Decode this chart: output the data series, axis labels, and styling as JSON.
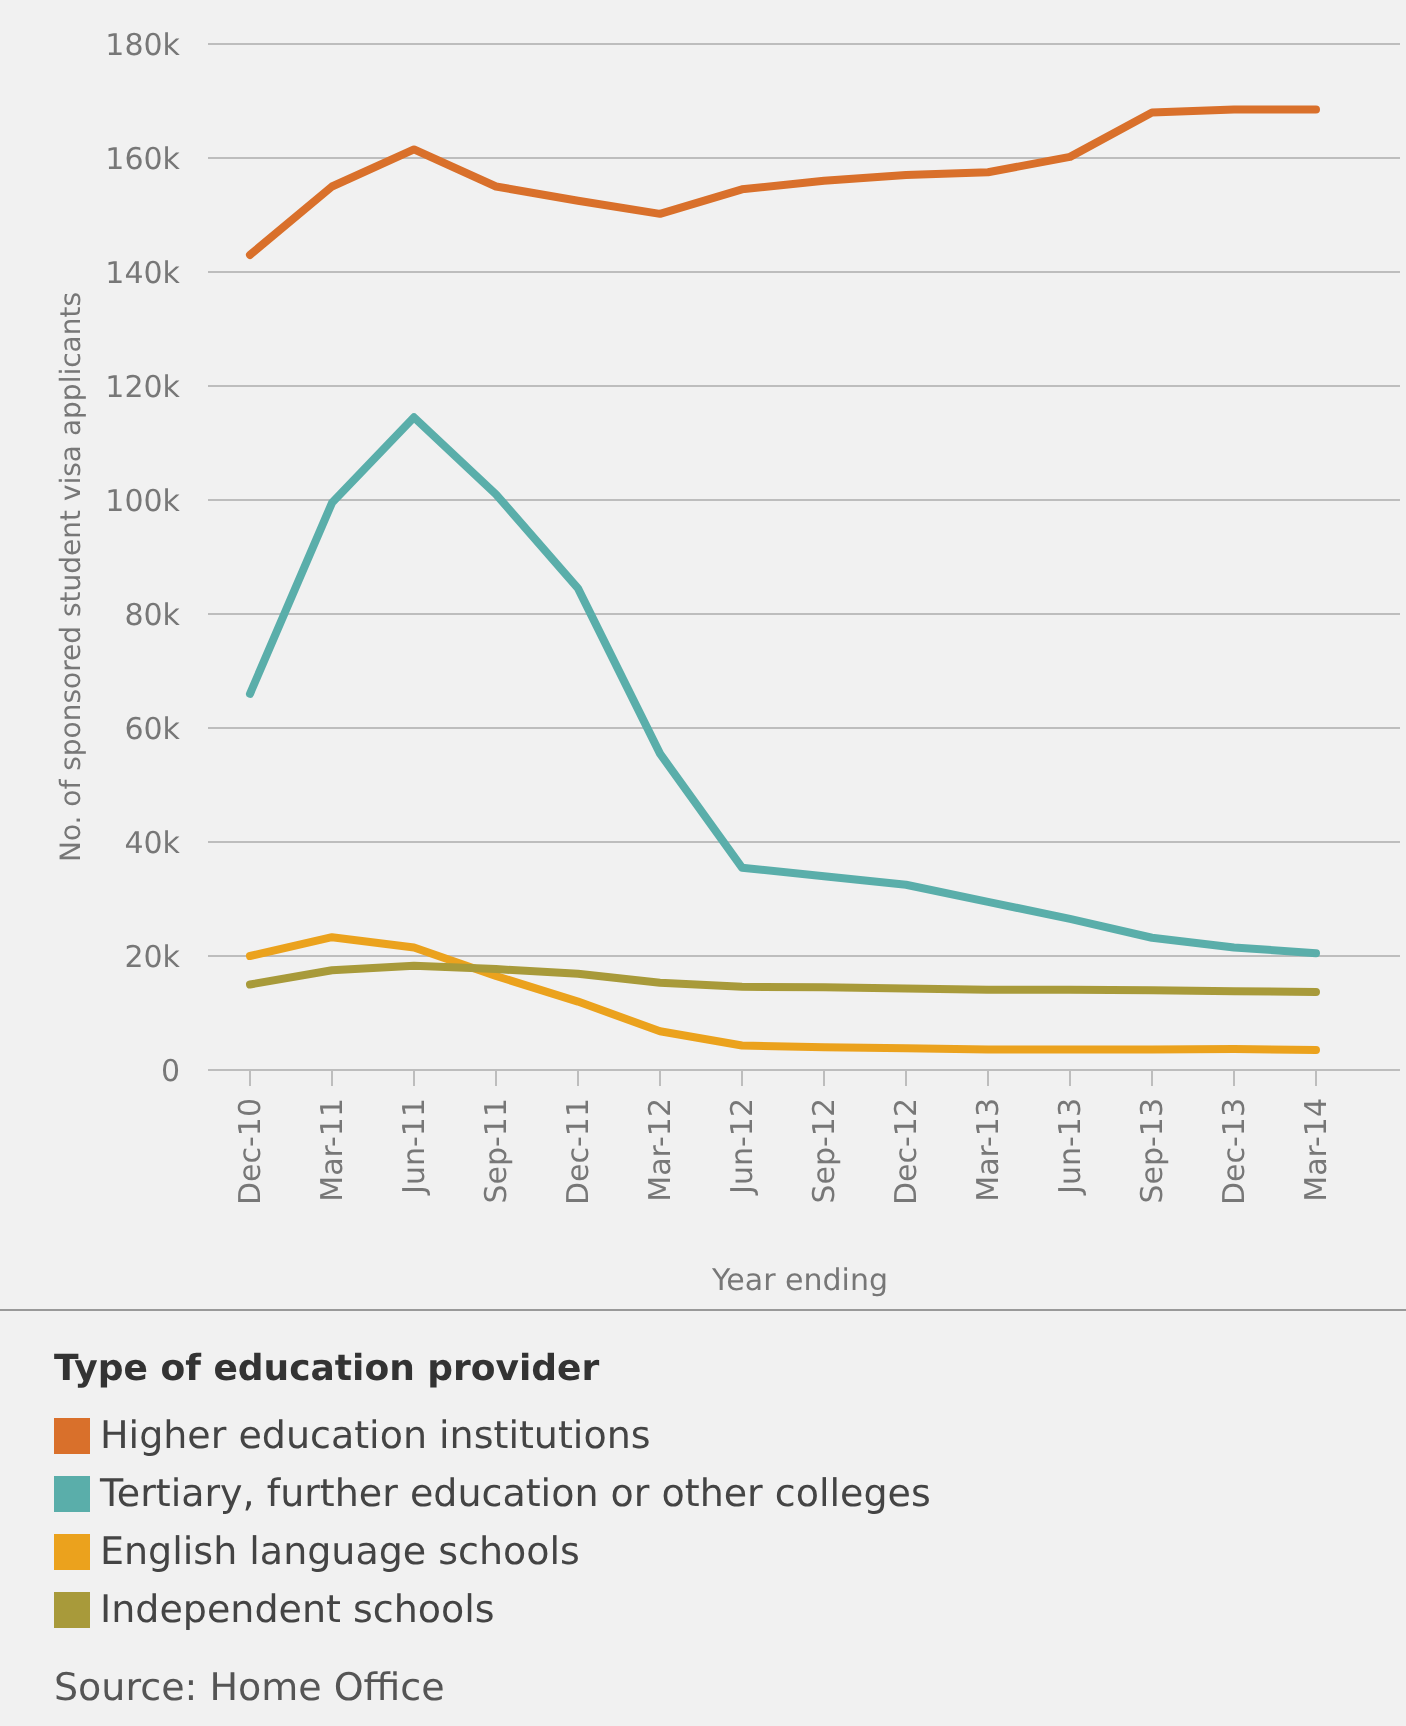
{
  "chart_data": {
    "type": "line",
    "xlabel": "Year ending",
    "ylabel": "No. of sponsored student visa applicants",
    "legend_title": "Type of education provider",
    "categories": [
      "Dec-10",
      "Mar-11",
      "Jun-11",
      "Sep-11",
      "Dec-11",
      "Mar-12",
      "Jun-12",
      "Sep-12",
      "Dec-12",
      "Mar-13",
      "Jun-13",
      "Sep-13",
      "Dec-13",
      "Mar-14"
    ],
    "series": [
      {
        "name": "Higher education institutions",
        "color": "#d9702b",
        "values": [
          143000,
          155000,
          161500,
          155000,
          152500,
          150200,
          154500,
          156000,
          157000,
          157500,
          160200,
          168000,
          168500,
          168500
        ]
      },
      {
        "name": "Tertiary, further education or other colleges",
        "color": "#5aaeaa",
        "values": [
          66000,
          99500,
          114500,
          101000,
          84500,
          55500,
          35500,
          34000,
          32500,
          29500,
          26500,
          23200,
          21500,
          20500
        ]
      },
      {
        "name": "English language schools",
        "color": "#eba21d",
        "values": [
          20000,
          23300,
          21500,
          16500,
          12000,
          6800,
          4300,
          4000,
          3800,
          3600,
          3600,
          3600,
          3700,
          3500
        ]
      },
      {
        "name": "Independent schools",
        "color": "#a89a3a",
        "values": [
          15000,
          17500,
          18300,
          17700,
          16900,
          15300,
          14600,
          14500,
          14300,
          14100,
          14100,
          14000,
          13800,
          13700
        ]
      }
    ],
    "ylim": [
      0,
      180000
    ],
    "yticks": [
      {
        "value": 0,
        "label": "0"
      },
      {
        "value": 20000,
        "label": "20k"
      },
      {
        "value": 40000,
        "label": "40k"
      },
      {
        "value": 60000,
        "label": "60k"
      },
      {
        "value": 80000,
        "label": "80k"
      },
      {
        "value": 100000,
        "label": "100k"
      },
      {
        "value": 120000,
        "label": "120k"
      },
      {
        "value": 140000,
        "label": "140k"
      },
      {
        "value": 160000,
        "label": "160k"
      },
      {
        "value": 180000,
        "label": "180k"
      }
    ],
    "grid": "y",
    "legend": "bottom",
    "marker": "none",
    "line_style": "solid",
    "annotations": [
      "Source: Home Office"
    ]
  }
}
